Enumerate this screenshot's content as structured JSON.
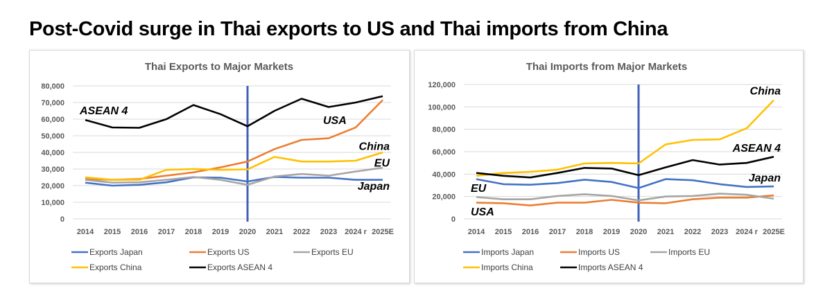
{
  "title": "Post-Covid surge in Thai exports to US and Thai imports from China",
  "chart_data": [
    {
      "type": "line",
      "title": "Thai Exports to Major Markets",
      "categories": [
        "2014",
        "2015",
        "2016",
        "2017",
        "2018",
        "2019",
        "2020",
        "2021",
        "2022",
        "2023",
        "2024 r",
        "2025E"
      ],
      "ylim": [
        0,
        80000
      ],
      "yticks": [
        "0",
        "10,000",
        "20,000",
        "30,000",
        "40,000",
        "50,000",
        "60,000",
        "70,000",
        "80,000"
      ],
      "ytick_values": [
        0,
        10000,
        20000,
        30000,
        40000,
        50000,
        60000,
        70000,
        80000
      ],
      "grid": true,
      "marker_line_category": "2020",
      "legend_position": "bottom",
      "series": [
        {
          "name": "Exports Japan",
          "color": "#4472c4",
          "values": [
            21800,
            20000,
            20500,
            22000,
            25000,
            24800,
            22500,
            25200,
            24800,
            24800,
            23500,
            23500
          ]
        },
        {
          "name": "Exports US",
          "color": "#ed7d31",
          "values": [
            24000,
            23500,
            24000,
            26000,
            28000,
            31000,
            34500,
            42000,
            47500,
            48500,
            55000,
            71500
          ]
        },
        {
          "name": "Exports EU",
          "color": "#a5a5a5",
          "values": [
            23500,
            21800,
            22000,
            23500,
            25200,
            23500,
            20500,
            25500,
            27000,
            26000,
            28500,
            30800
          ]
        },
        {
          "name": "Exports China",
          "color": "#ffc000",
          "values": [
            25000,
            23500,
            23500,
            29500,
            30000,
            29500,
            29800,
            37300,
            34500,
            34500,
            35000,
            40000
          ]
        },
        {
          "name": "Exports ASEAN 4",
          "color": "#000000",
          "values": [
            59500,
            55000,
            54800,
            60000,
            68500,
            63000,
            55700,
            65000,
            72300,
            67300,
            70000,
            73800
          ]
        }
      ],
      "annotations": [
        {
          "text": "ASEAN 4",
          "x": "2014",
          "y": 63000
        },
        {
          "text": "USA",
          "x": "2023",
          "y": 57000
        },
        {
          "text": "China",
          "x": "2025E",
          "y": 41500
        },
        {
          "text": "EU",
          "x": "2025E",
          "y": 31500
        },
        {
          "text": "Japan",
          "x": "2025E",
          "y": 17500
        }
      ]
    },
    {
      "type": "line",
      "title": "Thai Imports from Major Markets",
      "categories": [
        "2014",
        "2015",
        "2016",
        "2017",
        "2018",
        "2019",
        "2020",
        "2021",
        "2022",
        "2023",
        "2024 r",
        "2025E"
      ],
      "ylim": [
        0,
        120000
      ],
      "yticks": [
        "0",
        "20,000",
        "40,000",
        "60,000",
        "80,000",
        "100,000",
        "120,000"
      ],
      "ytick_values": [
        0,
        20000,
        40000,
        60000,
        80000,
        100000,
        120000
      ],
      "grid": true,
      "marker_line_category": "2020",
      "legend_position": "bottom",
      "series": [
        {
          "name": "Imports Japan",
          "color": "#4472c4",
          "values": [
            35500,
            31000,
            30500,
            32000,
            35000,
            33000,
            27500,
            35500,
            34500,
            31000,
            28500,
            29000
          ]
        },
        {
          "name": "Imports US",
          "color": "#ed7d31",
          "values": [
            14500,
            14000,
            12000,
            14500,
            14500,
            17000,
            14500,
            14000,
            17500,
            19000,
            19000,
            21000
          ]
        },
        {
          "name": "Imports EU",
          "color": "#a5a5a5",
          "values": [
            19500,
            17500,
            17500,
            20500,
            22000,
            20500,
            16500,
            20000,
            20500,
            22500,
            21500,
            18000
          ]
        },
        {
          "name": "Imports China",
          "color": "#ffc000",
          "values": [
            38500,
            41000,
            42000,
            44000,
            49500,
            50000,
            49500,
            66500,
            70500,
            71000,
            81000,
            106000
          ]
        },
        {
          "name": "Imports ASEAN 4",
          "color": "#000000",
          "values": [
            41000,
            38500,
            37000,
            41000,
            45500,
            45000,
            39000,
            46000,
            52500,
            48500,
            50000,
            55500
          ]
        }
      ],
      "annotations": [
        {
          "text": "China",
          "x": "2025E",
          "y": 111000
        },
        {
          "text": "ASEAN 4",
          "x": "2025E",
          "y": 60000
        },
        {
          "text": "Japan",
          "x": "2025E",
          "y": 33500
        },
        {
          "text": "EU",
          "x": "2014",
          "y": 24000
        },
        {
          "text": "USA",
          "x": "2014",
          "y": 3000
        }
      ]
    }
  ]
}
